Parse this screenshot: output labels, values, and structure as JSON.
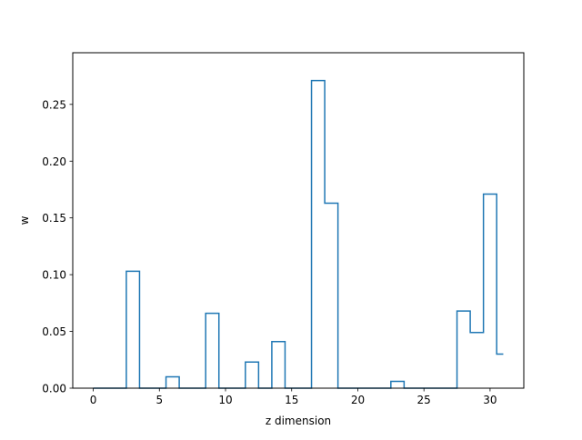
{
  "chart_data": {
    "type": "step",
    "title": "",
    "xlabel": "z dimension",
    "ylabel": "w",
    "xlim": [
      -1.55,
      32.55
    ],
    "ylim": [
      0,
      0.2955
    ],
    "xticks": [
      0,
      5,
      10,
      15,
      20,
      25,
      30
    ],
    "yticks": [
      0.0,
      0.05,
      0.1,
      0.15,
      0.2,
      0.25
    ],
    "grid": false,
    "legend": "none",
    "line_color": "#1f77b4",
    "x": [
      0,
      1,
      2,
      3,
      4,
      5,
      6,
      7,
      8,
      9,
      10,
      11,
      12,
      13,
      14,
      15,
      16,
      17,
      18,
      19,
      20,
      21,
      22,
      23,
      24,
      25,
      26,
      27,
      28,
      29,
      30,
      31
    ],
    "values": [
      0.0,
      0.0,
      0.0,
      0.103,
      0.0,
      0.0,
      0.01,
      0.0,
      0.0,
      0.066,
      0.0,
      0.0,
      0.023,
      0.0,
      0.041,
      0.0,
      0.0,
      0.271,
      0.163,
      0.0,
      0.0,
      0.0,
      0.0,
      0.006,
      0.0,
      0.0,
      0.0,
      0.0,
      0.068,
      0.049,
      0.171,
      0.03
    ]
  }
}
